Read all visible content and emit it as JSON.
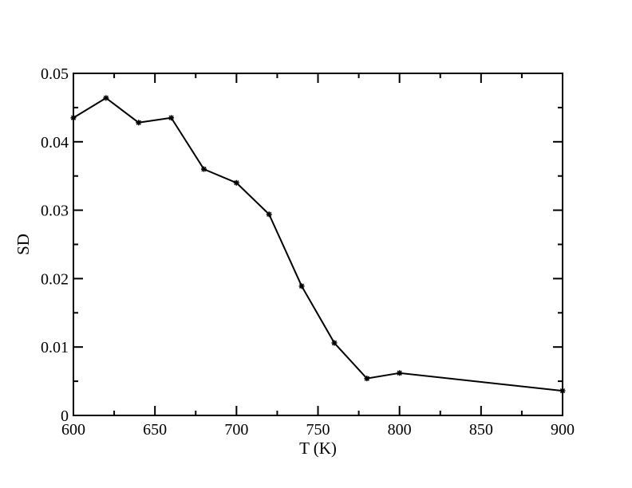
{
  "chart_data": {
    "type": "line",
    "title": "",
    "xlabel": "T (K)",
    "ylabel": "SD",
    "xlim": [
      600,
      900
    ],
    "ylim": [
      0,
      0.05
    ],
    "x_ticks": [
      600,
      650,
      700,
      750,
      800,
      850,
      900
    ],
    "x_tick_labels": [
      "600",
      "650",
      "700",
      "750",
      "800",
      "850",
      "900"
    ],
    "y_ticks": [
      0,
      0.01,
      0.02,
      0.03,
      0.04,
      0.05
    ],
    "y_tick_labels": [
      "0",
      "0.01",
      "0.02",
      "0.03",
      "0.04",
      "0.05"
    ],
    "grid": false,
    "legend": "none",
    "series": [
      {
        "color": "#000000",
        "marker": "star",
        "x": [
          600,
          620,
          640,
          660,
          680,
          700,
          720,
          740,
          760,
          780,
          800,
          900
        ],
        "y": [
          0.0435,
          0.0464,
          0.0428,
          0.0435,
          0.036,
          0.034,
          0.0294,
          0.0189,
          0.0106,
          0.0054,
          0.0062,
          0.0036
        ]
      }
    ]
  }
}
